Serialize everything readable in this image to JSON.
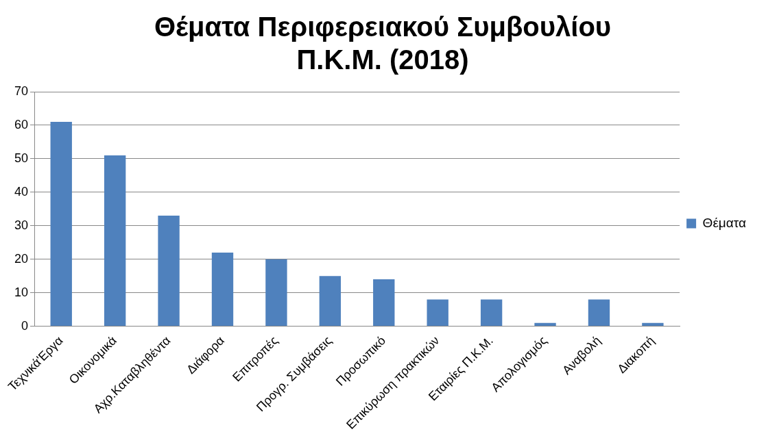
{
  "chart_data": {
    "type": "bar",
    "title": [
      "Θέματα Περιφερειακού Συμβουλίου",
      "Π.Κ.Μ. (2018)"
    ],
    "categories": [
      "Τεχνικά'Εργα",
      "Οικονομικά",
      "Αχρ.Καταβληθέντα",
      "Διάφορα",
      "Επιτροπές",
      "Προγρ. Συμβάσεις",
      "Προσωπικό",
      "Επικύρωση πρακτικών",
      "Εταιρίες Π.Κ.Μ.",
      "Απολογισμός",
      "Αναβολή",
      "Διακοπή"
    ],
    "series": [
      {
        "name": "Θέματα",
        "color": "#4f81bd",
        "values": [
          61,
          51,
          33,
          22,
          20,
          15,
          14,
          8,
          8,
          1,
          8,
          1
        ]
      }
    ],
    "ylim": [
      0,
      70
    ],
    "yticks": [
      0,
      10,
      20,
      30,
      40,
      50,
      60,
      70
    ],
    "grid": "y",
    "legend": "right"
  }
}
